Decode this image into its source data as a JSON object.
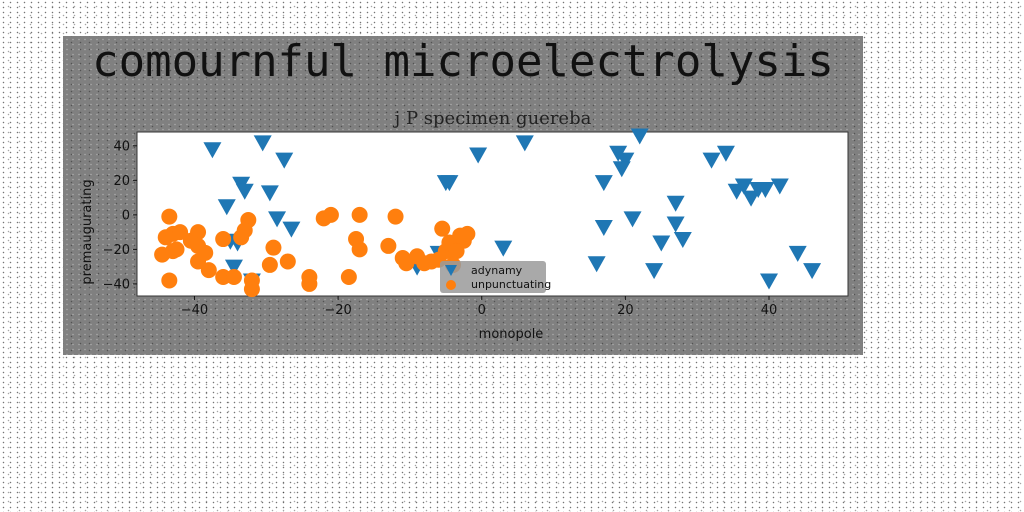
{
  "chart_data": {
    "type": "scatter",
    "suptitle": "comournful microelectrolysis",
    "title": "j P specimen guereba",
    "xlabel": "monopole",
    "ylabel": "premaugurating",
    "xlim": [
      -48,
      51
    ],
    "ylim": [
      -47,
      48
    ],
    "xticks": [
      -40,
      -20,
      0,
      20,
      40
    ],
    "yticks": [
      -40,
      -20,
      0,
      20,
      40
    ],
    "legend_position": "lower-center",
    "series": [
      {
        "name": "adynamy",
        "marker": "triangle-down",
        "color": "#1f77b4",
        "points": [
          [
            -37.5,
            38
          ],
          [
            -30.5,
            42
          ],
          [
            -27.5,
            32
          ],
          [
            -33.5,
            18
          ],
          [
            -33,
            14
          ],
          [
            -29.5,
            13
          ],
          [
            -35.5,
            5
          ],
          [
            -28.5,
            -2
          ],
          [
            -26.5,
            -8
          ],
          [
            -34,
            -16
          ],
          [
            -35,
            -15
          ],
          [
            -34.5,
            -30
          ],
          [
            -32,
            -38
          ],
          [
            -5,
            19
          ],
          [
            -4.5,
            19
          ],
          [
            -0.5,
            35
          ],
          [
            6,
            42
          ],
          [
            3,
            -19
          ],
          [
            -9,
            -30
          ],
          [
            -6,
            -22
          ],
          [
            16,
            -28
          ],
          [
            17,
            19
          ],
          [
            17,
            -7
          ],
          [
            19,
            36
          ],
          [
            20,
            32
          ],
          [
            19.5,
            27
          ],
          [
            21,
            -2
          ],
          [
            22,
            46
          ],
          [
            24,
            -32
          ],
          [
            25,
            -16
          ],
          [
            27,
            7
          ],
          [
            27,
            -5
          ],
          [
            28,
            -14
          ],
          [
            32,
            32
          ],
          [
            34,
            36
          ],
          [
            35.5,
            14
          ],
          [
            36.5,
            17
          ],
          [
            37.5,
            10
          ],
          [
            38.5,
            15
          ],
          [
            39.5,
            15
          ],
          [
            41.5,
            17
          ],
          [
            40,
            -38
          ],
          [
            44,
            -22
          ],
          [
            46,
            -32
          ]
        ]
      },
      {
        "name": "unpunctuating",
        "marker": "circle",
        "color": "#ff7f0e",
        "points": [
          [
            -43.5,
            -1
          ],
          [
            -44,
            -13
          ],
          [
            -43,
            -11
          ],
          [
            -42,
            -10
          ],
          [
            -44.5,
            -23
          ],
          [
            -43,
            -21
          ],
          [
            -42.5,
            -20
          ],
          [
            -43.5,
            -38
          ],
          [
            -40.5,
            -15
          ],
          [
            -39.5,
            -10
          ],
          [
            -39.5,
            -18
          ],
          [
            -38.5,
            -22
          ],
          [
            -39.5,
            -27
          ],
          [
            -38,
            -32
          ],
          [
            -36,
            -14
          ],
          [
            -36,
            -36
          ],
          [
            -34.5,
            -36
          ],
          [
            -32.5,
            -3
          ],
          [
            -33,
            -9
          ],
          [
            -33.5,
            -13
          ],
          [
            -32,
            -38
          ],
          [
            -32,
            -43
          ],
          [
            -29,
            -19
          ],
          [
            -29.5,
            -29
          ],
          [
            -27,
            -27
          ],
          [
            -24,
            -36
          ],
          [
            -24,
            -40
          ],
          [
            -22,
            -2
          ],
          [
            -21,
            0
          ],
          [
            -17,
            0
          ],
          [
            -17.5,
            -14
          ],
          [
            -17,
            -20
          ],
          [
            -18.5,
            -36
          ],
          [
            -13,
            -18
          ],
          [
            -12,
            -1
          ],
          [
            -11,
            -25
          ],
          [
            -10.5,
            -28
          ],
          [
            -9,
            -24
          ],
          [
            -7,
            -27
          ],
          [
            -6,
            -26
          ],
          [
            -5,
            -21
          ],
          [
            -5.5,
            -8
          ],
          [
            -4.5,
            -16
          ],
          [
            -4,
            -21
          ],
          [
            -2.5,
            -15
          ],
          [
            -3.5,
            -21
          ],
          [
            -4,
            -29
          ],
          [
            -3,
            -12
          ],
          [
            -2,
            -11
          ],
          [
            -8,
            -28
          ]
        ]
      }
    ]
  }
}
